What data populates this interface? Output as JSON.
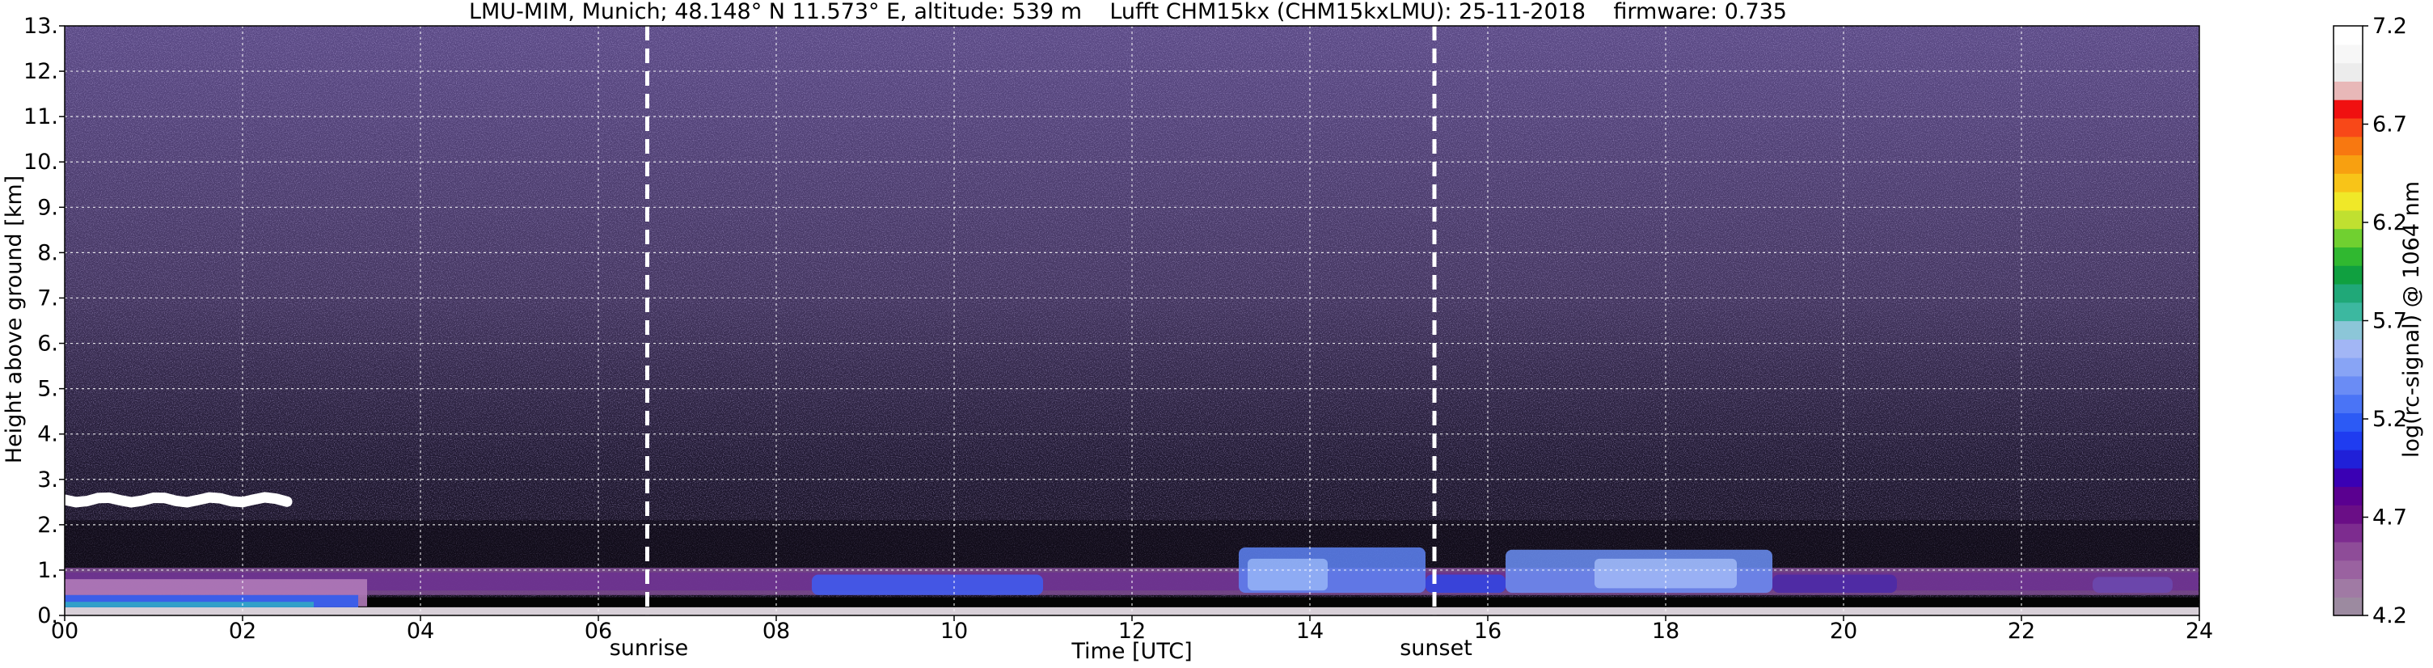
{
  "chart_data": {
    "type": "heatmap",
    "title": "LMU-MIM, Munich; 48.148° N 11.573° E, altitude: 539 m    Lufft CHM15kx (CHM15kxLMU): 25-11-2018    firmware: 0.735",
    "xlabel": "Time [UTC]",
    "ylabel": "Height above ground [km]",
    "xlim": [
      0,
      24
    ],
    "ylim": [
      0,
      13
    ],
    "x_ticks": [
      "00",
      "02",
      "04",
      "06",
      "08",
      "10",
      "12",
      "14",
      "16",
      "18",
      "20",
      "22",
      "24"
    ],
    "y_ticks": [
      "0.",
      "1.",
      "2.",
      "3.",
      "4.",
      "5.",
      "6.",
      "7.",
      "8.",
      "9.",
      "10.",
      "11.",
      "12.",
      "13."
    ],
    "grid": true,
    "markers": [
      {
        "label": "sunrise",
        "x": 6.55
      },
      {
        "label": "sunset",
        "x": 15.4
      }
    ],
    "colorbar": {
      "label": "log(rc-signal) @ 1064 nm",
      "min": 4.2,
      "max": 7.2,
      "ticks": [
        "4.2",
        "4.7",
        "5.2",
        "5.7",
        "6.2",
        "6.7",
        "7.2"
      ],
      "colors": [
        "#9c8aa0",
        "#a07aa4",
        "#9a62a0",
        "#8e4c98",
        "#7d2c8f",
        "#6a0e86",
        "#5a0090",
        "#3a00b4",
        "#2020d8",
        "#1f3cf0",
        "#2c5af5",
        "#4a74f6",
        "#6a8cf5",
        "#88a4f5",
        "#a2b6f5",
        "#8cc6d8",
        "#3cb8a0",
        "#20a878",
        "#10a040",
        "#30b830",
        "#70d030",
        "#c0e030",
        "#f0e828",
        "#f8c418",
        "#f8a010",
        "#f87810",
        "#f84818",
        "#f01010",
        "#e8b8b8",
        "#ececec",
        "#f7f7f7",
        "#ffffff"
      ]
    },
    "features": [
      {
        "name": "cloud layer",
        "x_range": [
          0,
          2.5
        ],
        "height_km": 2.55
      },
      {
        "name": "boundary layer aerosol",
        "x_range": [
          0,
          24
        ],
        "height_km_range": [
          0.2,
          1.05
        ]
      },
      {
        "name": "enhanced aerosol",
        "x_range": [
          13.2,
          15.3
        ],
        "height_km_range": [
          0.5,
          1.5
        ]
      },
      {
        "name": "enhanced aerosol",
        "x_range": [
          16.2,
          19.2
        ],
        "height_km_range": [
          0.5,
          1.45
        ]
      }
    ]
  }
}
